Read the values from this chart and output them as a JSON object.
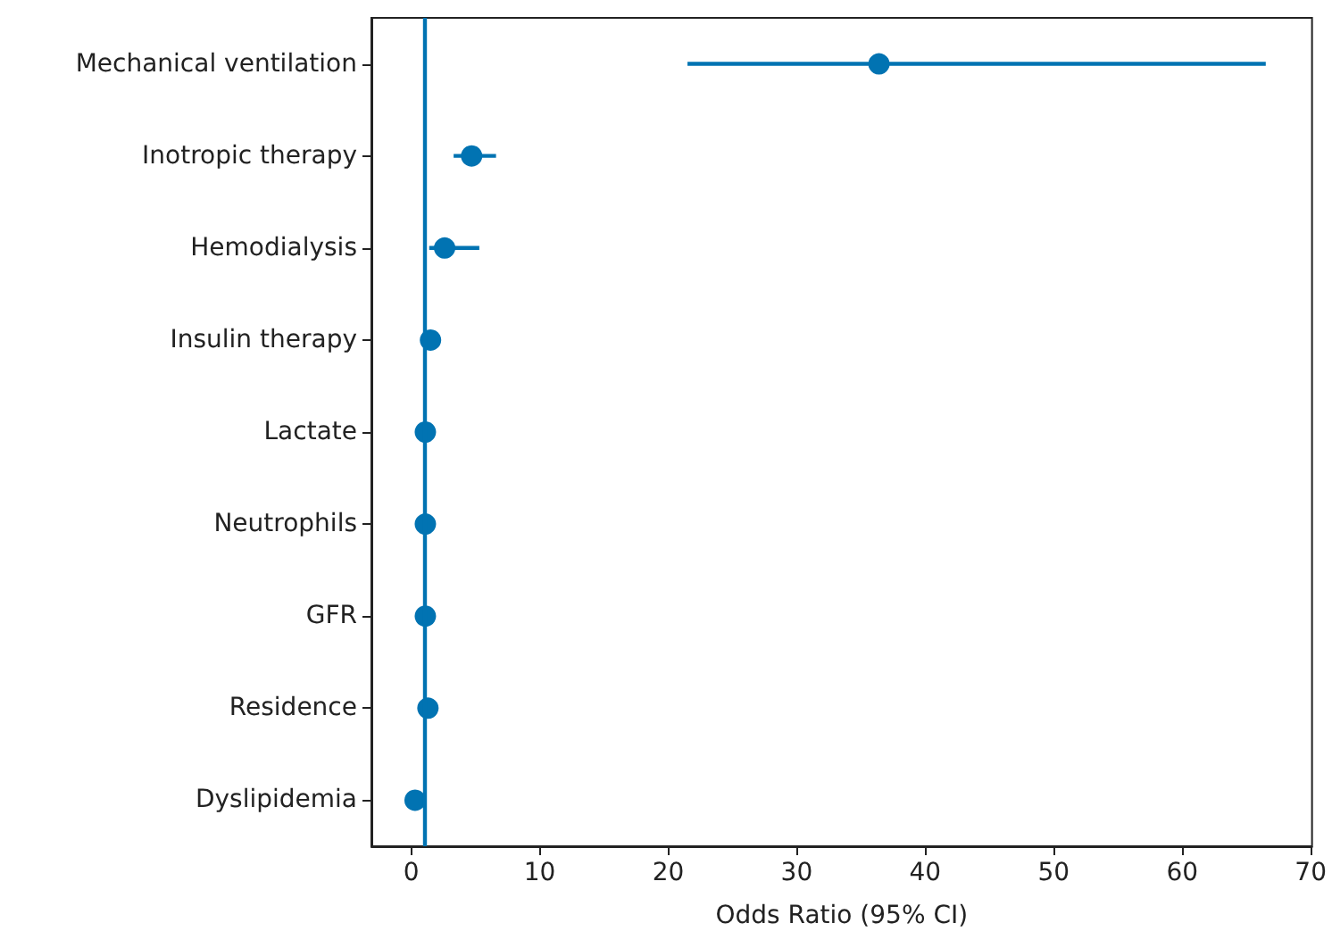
{
  "chart_data": {
    "type": "scatter",
    "orientation": "horizontal",
    "xlabel": "Odds Ratio (95% CI)",
    "categories": [
      "Mechanical ventilation",
      "Inotropic therapy",
      "Hemodialysis",
      "Insulin therapy",
      "Lactate",
      "Neutrophils",
      "GFR",
      "Residence",
      "Dyslipidemia"
    ],
    "series": [
      {
        "color": "#0173b2",
        "values": [
          36.4,
          4.7,
          2.6,
          1.5,
          1.1,
          1.1,
          1.1,
          1.3,
          0.3
        ],
        "errors": [
          [
            21.5,
            66.5
          ],
          [
            3.3,
            6.6
          ],
          [
            1.4,
            5.3
          ],
          null,
          null,
          null,
          null,
          null,
          null
        ]
      }
    ],
    "xlim": [
      -3.1,
      70.1
    ],
    "xticks": [
      0,
      10,
      20,
      30,
      40,
      50,
      60,
      70
    ],
    "ref_lines": [
      {
        "axis": "x",
        "value": 1,
        "color": "#0173b2"
      }
    ],
    "marker": "circle",
    "grid": false
  }
}
